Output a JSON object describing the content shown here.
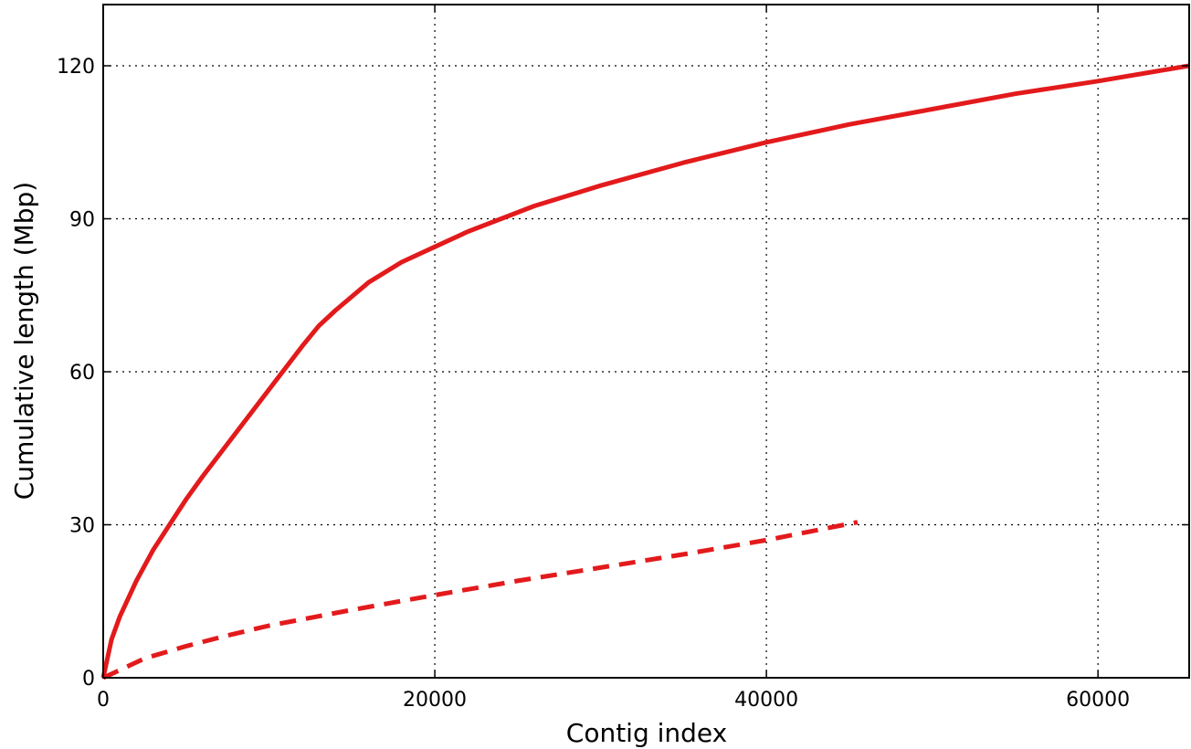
{
  "chart_data": {
    "type": "line",
    "xlabel": "Contig index",
    "ylabel": "Cumulative length (Mbp)",
    "xlim": [
      0,
      65500
    ],
    "ylim": [
      0,
      132
    ],
    "xticks": [
      0,
      20000,
      40000,
      60000
    ],
    "yticks": [
      0,
      30,
      60,
      90,
      120
    ],
    "grid": true,
    "series": [
      {
        "style": "solid",
        "color": "#e31a1c",
        "x": [
          0,
          500,
          1000,
          2000,
          3000,
          4000,
          5000,
          6000,
          8000,
          10000,
          12000,
          13000,
          14000,
          16000,
          18000,
          20000,
          22000,
          24000,
          26000,
          28000,
          30000,
          35000,
          40000,
          45000,
          50000,
          55000,
          60000,
          65500
        ],
        "y": [
          0,
          7.5,
          12,
          19,
          25,
          30,
          35,
          39.5,
          48,
          56.5,
          65,
          69,
          72,
          77.5,
          81.5,
          84.5,
          87.5,
          90,
          92.5,
          94.5,
          96.5,
          101,
          105,
          108.5,
          111.5,
          114.5,
          117,
          120
        ]
      },
      {
        "style": "dashed",
        "color": "#e31a1c",
        "x": [
          0,
          1000,
          2500,
          5000,
          7500,
          10000,
          15000,
          20000,
          25000,
          30000,
          35000,
          40000,
          45500
        ],
        "y": [
          0,
          1.5,
          3.8,
          6.2,
          8.3,
          10.2,
          13.3,
          16.2,
          19,
          21.6,
          24.2,
          27,
          30.5
        ]
      }
    ]
  }
}
